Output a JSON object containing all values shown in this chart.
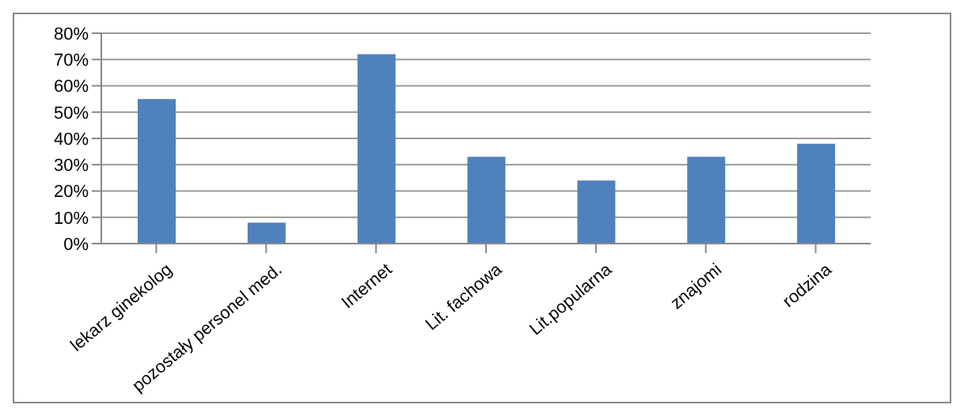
{
  "chart_data": {
    "type": "bar",
    "categories": [
      "lekarz ginekolog",
      "pozostały personel med.",
      "Internet",
      "Lit. fachowa",
      "Lit.popularna",
      "znajomi",
      "rodzina"
    ],
    "values": [
      55,
      8,
      72,
      33,
      24,
      33,
      38
    ],
    "color": "#4f81bd",
    "ylim": [
      0,
      80
    ],
    "yticks": [
      {
        "value": 0,
        "label": "0%"
      },
      {
        "value": 10,
        "label": "10%"
      },
      {
        "value": 20,
        "label": "20%"
      },
      {
        "value": 30,
        "label": "30%"
      },
      {
        "value": 40,
        "label": "40%"
      },
      {
        "value": 50,
        "label": "50%"
      },
      {
        "value": 60,
        "label": "60%"
      },
      {
        "value": 70,
        "label": "70%"
      },
      {
        "value": 80,
        "label": "80%"
      }
    ],
    "grid": "y"
  }
}
